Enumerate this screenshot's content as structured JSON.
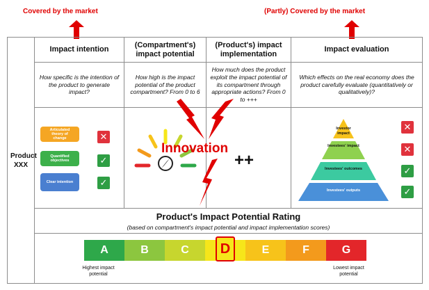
{
  "top_labels": {
    "left": "Covered by the market",
    "right": "(Partly) Covered by the market"
  },
  "row_label": "Product XXX",
  "headers": [
    "Impact intention",
    "(Compartment's) impact potential",
    "(Product's) impact implementation",
    "Impact evaluation"
  ],
  "questions": [
    "How specific is the intention of the product to generate impact?",
    "How high is the impact potential of the product compartment? From 0 to 6",
    "How much does the product exploit the impact potential of its compartment through appropriate actions? From 0 to +++",
    "Which effects on the real economy does the product carefully evaluate (quantitatively or qualitatively)?"
  ],
  "intention_items": [
    {
      "label": "Articulated theory of change",
      "color": "#f5a623",
      "mark": "✕",
      "mark_color": "#e0323c"
    },
    {
      "label": "Quantified objectives",
      "color": "#3cb04a",
      "mark": "✓",
      "mark_color": "#2e9e44"
    },
    {
      "label": "Clear intention",
      "color": "#4a7fd0",
      "mark": "✓",
      "mark_color": "#2e9e44"
    }
  ],
  "innovation_label": "Innovation",
  "implementation_value": "++",
  "pyramid_levels": [
    {
      "label": "Investor impact",
      "color": "#f6c21c",
      "mark": "✕",
      "mark_color": "#e0323c"
    },
    {
      "label": "Investees' impact",
      "color": "#8fd14f",
      "mark": "✕",
      "mark_color": "#e0323c"
    },
    {
      "label": "Investees' outcomes",
      "color": "#3ccaa0",
      "mark": "✓",
      "mark_color": "#2e9e44"
    },
    {
      "label": "Investees' outputs",
      "color": "#4a90d9",
      "mark": "✓",
      "mark_color": "#2e9e44"
    }
  ],
  "rating": {
    "title": "Product's Impact Potential Rating",
    "subtitle": "(based on compartment's impact potential and impact implementation scores)",
    "grades": [
      {
        "letter": "A",
        "color": "#2ea84a"
      },
      {
        "letter": "B",
        "color": "#8cc63f"
      },
      {
        "letter": "C",
        "color": "#c7d62e"
      },
      {
        "letter": "D",
        "color": "#f6e61a"
      },
      {
        "letter": "E",
        "color": "#f7c31a"
      },
      {
        "letter": "F",
        "color": "#f39a1c"
      },
      {
        "letter": "G",
        "color": "#e3262a"
      }
    ],
    "selected": "D",
    "low_label": "Highest impact potential",
    "high_label": "Lowest impact potential"
  }
}
